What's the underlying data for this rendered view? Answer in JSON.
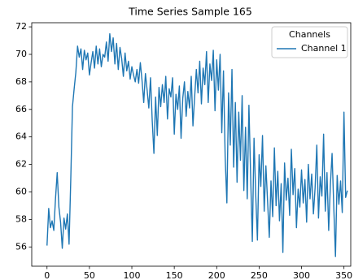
{
  "chart_data": {
    "type": "line",
    "title": "Time Series Sample 165",
    "x": [
      0,
      2,
      4,
      6,
      8,
      10,
      12,
      14,
      16,
      18,
      20,
      22,
      24,
      26,
      28,
      30,
      32,
      34,
      36,
      38,
      40,
      42,
      44,
      46,
      48,
      50,
      52,
      54,
      56,
      58,
      60,
      62,
      64,
      66,
      68,
      70,
      72,
      74,
      76,
      78,
      80,
      82,
      84,
      86,
      88,
      90,
      92,
      94,
      96,
      98,
      100,
      102,
      104,
      106,
      108,
      110,
      112,
      114,
      116,
      118,
      120,
      122,
      124,
      126,
      128,
      130,
      132,
      134,
      136,
      138,
      140,
      142,
      144,
      146,
      148,
      150,
      152,
      154,
      156,
      158,
      160,
      162,
      164,
      166,
      168,
      170,
      172,
      174,
      176,
      178,
      180,
      182,
      184,
      186,
      188,
      190,
      192,
      194,
      196,
      198,
      200,
      202,
      204,
      206,
      208,
      210,
      212,
      214,
      216,
      218,
      220,
      222,
      224,
      226,
      228,
      230,
      232,
      234,
      236,
      238,
      240,
      242,
      244,
      246,
      248,
      250,
      252,
      254,
      256,
      258,
      260,
      262,
      264,
      266,
      268,
      270,
      272,
      274,
      276,
      278,
      280,
      282,
      284,
      286,
      288,
      290,
      292,
      294,
      296,
      298,
      300,
      302,
      304,
      306,
      308,
      310,
      312,
      314,
      316,
      318,
      320,
      322,
      324,
      326,
      328,
      330,
      332,
      334,
      336,
      338,
      340,
      342,
      344,
      346,
      348,
      350,
      352,
      354
    ],
    "series": [
      {
        "name": "Channel 1",
        "color": "#1f77b4",
        "values": [
          56.1,
          58.8,
          57.4,
          57.9,
          57.2,
          59.5,
          61.4,
          58.9,
          57.8,
          55.9,
          58.1,
          57.3,
          58.4,
          56.2,
          60.9,
          66.2,
          67.5,
          68.7,
          70.6,
          69.8,
          70.4,
          68.9,
          70.3,
          69.6,
          70.1,
          68.5,
          69.4,
          70.2,
          69.0,
          70.6,
          69.3,
          70.4,
          69.1,
          70.0,
          69.8,
          70.9,
          69.5,
          71.5,
          70.2,
          71.2,
          69.3,
          70.8,
          68.9,
          70.5,
          69.7,
          68.4,
          70.1,
          68.8,
          69.5,
          68.2,
          69.1,
          68.5,
          68.0,
          68.9,
          67.9,
          69.4,
          68.1,
          66.5,
          68.6,
          67.4,
          66.1,
          68.3,
          65.2,
          62.8,
          66.9,
          64.1,
          67.6,
          66.2,
          67.8,
          66.5,
          68.4,
          65.3,
          67.5,
          66.9,
          68.3,
          64.2,
          67.1,
          66.0,
          67.7,
          63.9,
          66.8,
          68.0,
          65.5,
          67.3,
          66.1,
          68.4,
          64.8,
          66.9,
          68.9,
          67.2,
          69.5,
          66.4,
          69.0,
          67.8,
          70.2,
          66.5,
          69.3,
          68.1,
          70.3,
          65.9,
          69.6,
          67.4,
          70.0,
          64.3,
          68.8,
          62.5,
          59.2,
          67.2,
          63.4,
          68.9,
          61.8,
          66.5,
          60.7,
          65.8,
          62.3,
          67.0,
          60.1,
          64.7,
          59.5,
          66.3,
          61.2,
          56.4,
          63.9,
          59.8,
          56.5,
          62.7,
          60.4,
          64.1,
          58.6,
          61.9,
          59.3,
          56.7,
          60.8,
          58.2,
          63.2,
          59.0,
          61.5,
          57.9,
          60.6,
          55.6,
          62.1,
          59.4,
          61.0,
          58.3,
          63.1,
          59.8,
          61.7,
          57.4,
          60.2,
          58.9,
          61.6,
          59.2,
          60.9,
          57.8,
          62.0,
          59.5,
          61.3,
          58.4,
          60.3,
          63.4,
          58.1,
          61.1,
          59.7,
          64.2,
          58.6,
          61.4,
          57.2,
          60.5,
          62.8,
          58.9,
          55.3,
          61.2,
          59.1,
          60.8,
          58.5,
          65.8,
          59.6,
          60.1
        ]
      }
    ],
    "xlim": [
      -18,
      358
    ],
    "xticks": [
      0,
      50,
      100,
      150,
      200,
      250,
      300,
      350
    ],
    "ylim": [
      54.6,
      72.3
    ],
    "yticks": [
      56,
      58,
      60,
      62,
      64,
      66,
      68,
      70,
      72
    ],
    "grid": false,
    "legend": {
      "title": "Channels",
      "loc": "upper right"
    }
  }
}
